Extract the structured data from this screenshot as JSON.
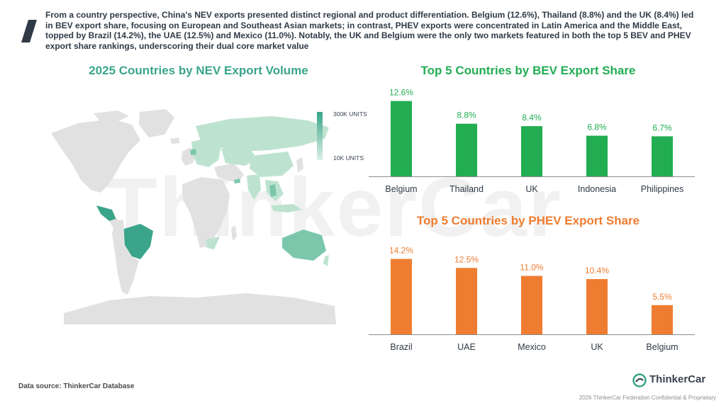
{
  "summary": "From a country perspective, China's NEV exports presented distinct regional and product differentiation. Belgium (12.6%), Thailand (8.8%) and the UK (8.4%) led in BEV export share, focusing on European and Southeast Asian markets; in contrast, PHEV exports were concentrated in Latin America and the Middle East, topped by Brazil (14.2%), the UAE (12.5%) and Mexico (11.0%). Notably, the UK and Belgium were the only two markets featured in both the top 5 BEV and PHEV export share rankings, underscoring their dual core market value",
  "map": {
    "title": "2025 Countries by NEV Export Volume",
    "legend_max": "300K UNITS",
    "legend_min": "10K UNITS",
    "colors": {
      "high": "#3aa58a",
      "low": "#dcefe6",
      "land": "#e1e1e1"
    }
  },
  "watermark": "ThinkerCar",
  "chart_data": [
    {
      "type": "bar",
      "title": "Top 5 Countries by BEV Export Share",
      "categories": [
        "Belgium",
        "Thailand",
        "UK",
        "Indonesia",
        "Philippines"
      ],
      "values": [
        12.6,
        8.8,
        8.4,
        6.8,
        6.7
      ],
      "value_labels": [
        "12.6%",
        "8.8%",
        "8.4%",
        "6.8%",
        "6.7%"
      ],
      "ylim": [
        0,
        13.5
      ],
      "color": "#22ad52",
      "grid": false
    },
    {
      "type": "bar",
      "title": "Top 5 Countries by PHEV Export Share",
      "categories": [
        "Brazil",
        "UAE",
        "Mexico",
        "UK",
        "Belgium"
      ],
      "values": [
        14.2,
        12.5,
        11.0,
        10.4,
        5.5
      ],
      "value_labels": [
        "14.2%",
        "12.5%",
        "11.0%",
        "10.4%",
        "5.5%"
      ],
      "ylim": [
        0,
        15.2
      ],
      "color": "#ee7d31",
      "grid": false
    }
  ],
  "footer": {
    "source": "Data source: ThinkerCar Database",
    "brand": "ThinkerCar",
    "copyright": "2026 ThinkerCar Federation Confidential & Proprietary"
  }
}
